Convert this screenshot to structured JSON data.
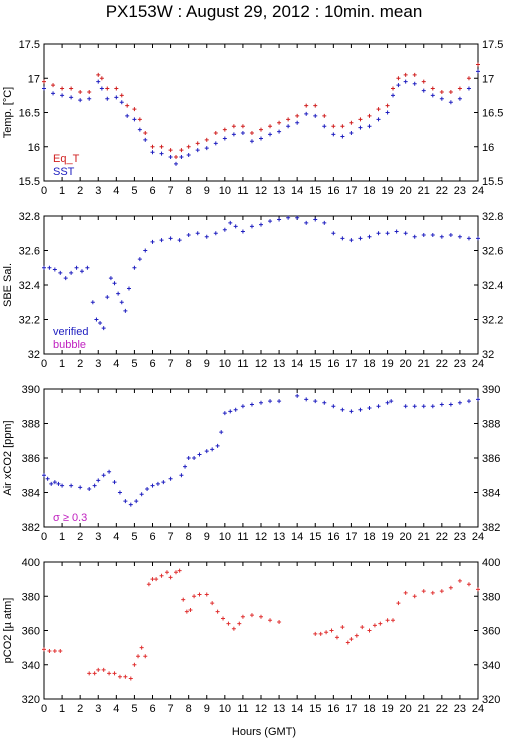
{
  "title": "PX153W : August 29, 2012 : 10min. mean",
  "xlabel": "Hours (GMT)",
  "x_ticks": [
    0,
    1,
    2,
    3,
    4,
    5,
    6,
    7,
    8,
    9,
    10,
    11,
    12,
    13,
    14,
    15,
    16,
    17,
    18,
    19,
    20,
    21,
    22,
    23,
    24
  ],
  "colors": {
    "eqt": "#d02020",
    "sst": "#2020c0",
    "verified": "#2020c0",
    "bubble": "#c020c0",
    "sigma": "#c020c0",
    "pco2": "#e03030",
    "axcO2": "#2020c0"
  },
  "chart_data": [
    {
      "type": "scatter",
      "ylabel": "Temp. [°C]",
      "xlim": [
        0,
        24
      ],
      "ylim": [
        15.5,
        17.5
      ],
      "y_ticks": [
        "15.5",
        "16",
        "16.5",
        "17",
        "17.5"
      ],
      "y_tick_values": [
        15.5,
        16,
        16.5,
        17,
        17.5
      ],
      "legend": [
        "Eq_T",
        "SST"
      ],
      "series": [
        {
          "name": "Eq_T",
          "x": [
            0,
            0.5,
            1,
            1.5,
            2,
            2.5,
            3,
            3.2,
            3.5,
            4,
            4.3,
            4.6,
            5,
            5.3,
            5.6,
            6,
            6.5,
            7,
            7.3,
            7.6,
            8,
            8.5,
            9,
            9.5,
            10,
            10.5,
            11,
            11.5,
            12,
            12.5,
            13,
            13.5,
            14,
            14.5,
            15,
            15.5,
            16,
            16.5,
            17,
            17.5,
            18,
            18.5,
            19,
            19.3,
            19.6,
            20,
            20.5,
            21,
            21.5,
            22,
            22.5,
            23,
            23.5,
            24
          ],
          "y": [
            16.95,
            16.9,
            16.85,
            16.85,
            16.8,
            16.8,
            17.05,
            17.0,
            16.85,
            16.85,
            16.75,
            16.6,
            16.55,
            16.4,
            16.2,
            16.0,
            16.0,
            15.95,
            15.85,
            15.95,
            16.0,
            16.05,
            16.1,
            16.2,
            16.25,
            16.3,
            16.3,
            16.2,
            16.25,
            16.3,
            16.35,
            16.4,
            16.45,
            16.6,
            16.6,
            16.45,
            16.3,
            16.3,
            16.35,
            16.4,
            16.45,
            16.55,
            16.6,
            16.85,
            17.0,
            17.05,
            17.05,
            16.95,
            16.85,
            16.8,
            16.8,
            16.85,
            17.0,
            17.2
          ]
        },
        {
          "name": "SST",
          "x": [
            0,
            0.5,
            1,
            1.5,
            2,
            2.5,
            3,
            3.2,
            3.5,
            4,
            4.3,
            4.6,
            5,
            5.3,
            5.6,
            6,
            6.5,
            7,
            7.3,
            7.6,
            8,
            8.5,
            9,
            9.5,
            10,
            10.5,
            11,
            11.5,
            12,
            12.5,
            13,
            13.5,
            14,
            14.5,
            15,
            15.5,
            16,
            16.5,
            17,
            17.5,
            18,
            18.5,
            19,
            19.3,
            19.6,
            20,
            20.5,
            21,
            21.5,
            22,
            22.5,
            23,
            23.5,
            24
          ],
          "y": [
            16.85,
            16.78,
            16.75,
            16.72,
            16.68,
            16.7,
            16.95,
            16.85,
            16.7,
            16.72,
            16.65,
            16.45,
            16.4,
            16.25,
            16.1,
            15.92,
            15.9,
            15.85,
            15.75,
            15.85,
            15.88,
            15.95,
            15.98,
            16.05,
            16.12,
            16.18,
            16.2,
            16.08,
            16.12,
            16.18,
            16.22,
            16.3,
            16.35,
            16.48,
            16.45,
            16.3,
            16.18,
            16.15,
            16.2,
            16.28,
            16.3,
            16.4,
            16.5,
            16.75,
            16.9,
            16.95,
            16.92,
            16.82,
            16.75,
            16.7,
            16.65,
            16.7,
            16.85,
            17.1
          ]
        }
      ]
    },
    {
      "type": "scatter",
      "ylabel": "SBE Sal.",
      "xlim": [
        0,
        24
      ],
      "ylim": [
        32.0,
        32.8
      ],
      "y_ticks": [
        "32",
        "32.2",
        "32.4",
        "32.6",
        "32.8"
      ],
      "y_tick_values": [
        32.0,
        32.2,
        32.4,
        32.6,
        32.8
      ],
      "legend": [
        "verified",
        "bubble"
      ],
      "series": [
        {
          "name": "verified",
          "x": [
            0,
            0.3,
            0.6,
            0.9,
            1.2,
            1.5,
            1.8,
            2.1,
            2.4,
            2.7,
            2.9,
            3.1,
            3.3,
            3.5,
            3.7,
            3.9,
            4.1,
            4.3,
            4.5,
            4.7,
            5.0,
            5.3,
            5.6,
            6.0,
            6.5,
            7,
            7.5,
            8,
            8.5,
            9,
            9.5,
            10,
            10.3,
            10.6,
            11,
            11.5,
            12,
            12.5,
            13,
            13.5,
            14,
            14.5,
            15,
            15.5,
            16,
            16.5,
            17,
            17.5,
            18,
            18.5,
            19,
            19.5,
            20,
            20.5,
            21,
            21.5,
            22,
            22.5,
            23,
            23.5,
            24
          ],
          "y": [
            32.5,
            32.5,
            32.49,
            32.47,
            32.44,
            32.47,
            32.5,
            32.48,
            32.5,
            32.3,
            32.2,
            32.18,
            32.15,
            32.33,
            32.44,
            32.41,
            32.35,
            32.3,
            32.25,
            32.38,
            32.5,
            32.55,
            32.6,
            32.65,
            32.66,
            32.67,
            32.66,
            32.69,
            32.7,
            32.68,
            32.7,
            32.72,
            32.76,
            32.74,
            32.71,
            32.74,
            32.75,
            32.77,
            32.78,
            32.79,
            32.79,
            32.76,
            32.78,
            32.76,
            32.7,
            32.67,
            32.66,
            32.67,
            32.68,
            32.7,
            32.7,
            32.71,
            32.7,
            32.68,
            32.69,
            32.69,
            32.68,
            32.69,
            32.68,
            32.67,
            32.67
          ]
        }
      ]
    },
    {
      "type": "scatter",
      "ylabel": "Air xCO2 [ppm]",
      "xlim": [
        0,
        24
      ],
      "ylim": [
        382,
        390
      ],
      "y_ticks": [
        "382",
        "384",
        "386",
        "388",
        "390"
      ],
      "y_tick_values": [
        382,
        384,
        386,
        388,
        390
      ],
      "legend": [
        "σ ≥ 0.3"
      ],
      "series": [
        {
          "name": "",
          "x": [
            0,
            0.2,
            0.4,
            0.6,
            0.8,
            1.0,
            1.5,
            2.0,
            2.5,
            2.8,
            3.0,
            3.3,
            3.6,
            3.9,
            4.2,
            4.5,
            4.8,
            5.1,
            5.4,
            5.7,
            6.0,
            6.3,
            6.6,
            7.0,
            7.6,
            7.8,
            8.0,
            8.3,
            8.6,
            9.0,
            9.3,
            9.6,
            9.8,
            10.0,
            10.3,
            10.6,
            11,
            11.5,
            12,
            12.5,
            13,
            14,
            14.5,
            15,
            15.5,
            16,
            16.5,
            17,
            17.5,
            18,
            18.5,
            19,
            19.2,
            20,
            20.5,
            21,
            21.5,
            22,
            22.5,
            23,
            23.5,
            24
          ],
          "y": [
            385.0,
            384.8,
            384.5,
            384.6,
            384.5,
            384.4,
            384.4,
            384.3,
            384.2,
            384.4,
            384.7,
            385.0,
            385.2,
            384.6,
            384.0,
            383.5,
            383.3,
            383.5,
            383.9,
            384.2,
            384.4,
            384.5,
            384.6,
            384.8,
            385.0,
            385.5,
            386.0,
            386.0,
            386.2,
            386.4,
            386.5,
            386.7,
            387.5,
            388.6,
            388.7,
            388.8,
            389.0,
            389.1,
            389.2,
            389.3,
            389.3,
            389.6,
            389.4,
            389.3,
            389.2,
            389.0,
            388.8,
            388.7,
            388.8,
            388.9,
            389.0,
            389.2,
            389.3,
            389.0,
            389.0,
            389.0,
            389.0,
            389.1,
            389.1,
            389.2,
            389.3,
            389.4
          ]
        }
      ]
    },
    {
      "type": "scatter",
      "ylabel": "pCO2 [µ atm]",
      "xlim": [
        0,
        24
      ],
      "ylim": [
        320,
        400
      ],
      "y_ticks": [
        "320",
        "340",
        "360",
        "380",
        "400"
      ],
      "y_tick_values": [
        320,
        340,
        360,
        380,
        400
      ],
      "legend": [],
      "series": [
        {
          "name": "",
          "x": [
            0,
            0.3,
            0.6,
            0.9,
            2.5,
            2.8,
            3.0,
            3.3,
            3.6,
            3.9,
            4.2,
            4.5,
            4.8,
            5.0,
            5.2,
            5.4,
            5.6,
            5.8,
            6.0,
            6.2,
            6.5,
            6.8,
            7.0,
            7.3,
            7.5,
            7.7,
            7.9,
            8.1,
            8.3,
            8.6,
            9.0,
            9.3,
            9.6,
            9.9,
            10.2,
            10.5,
            10.8,
            11,
            11.5,
            12,
            12.5,
            13,
            15,
            15.3,
            15.6,
            15.9,
            16.2,
            16.5,
            16.8,
            17,
            17.3,
            17.6,
            18,
            18.3,
            18.6,
            19,
            19.3,
            19.6,
            20,
            20.5,
            21,
            21.5,
            22,
            22.5,
            23,
            23.5,
            24
          ],
          "y": [
            349,
            348,
            348,
            348,
            335,
            335,
            337,
            337,
            335,
            335,
            333,
            333,
            332,
            340,
            345,
            350,
            345,
            387,
            390,
            390,
            392,
            394,
            391,
            394,
            395,
            378,
            371,
            372,
            380,
            381,
            381,
            376,
            371,
            367,
            364,
            361,
            364,
            368,
            369,
            368,
            366,
            365,
            358,
            358,
            359,
            360,
            356,
            362,
            353,
            355,
            357,
            362,
            360,
            363,
            364,
            366,
            366,
            376,
            382,
            380,
            383,
            382,
            383,
            385,
            389,
            387,
            384
          ]
        }
      ]
    }
  ]
}
